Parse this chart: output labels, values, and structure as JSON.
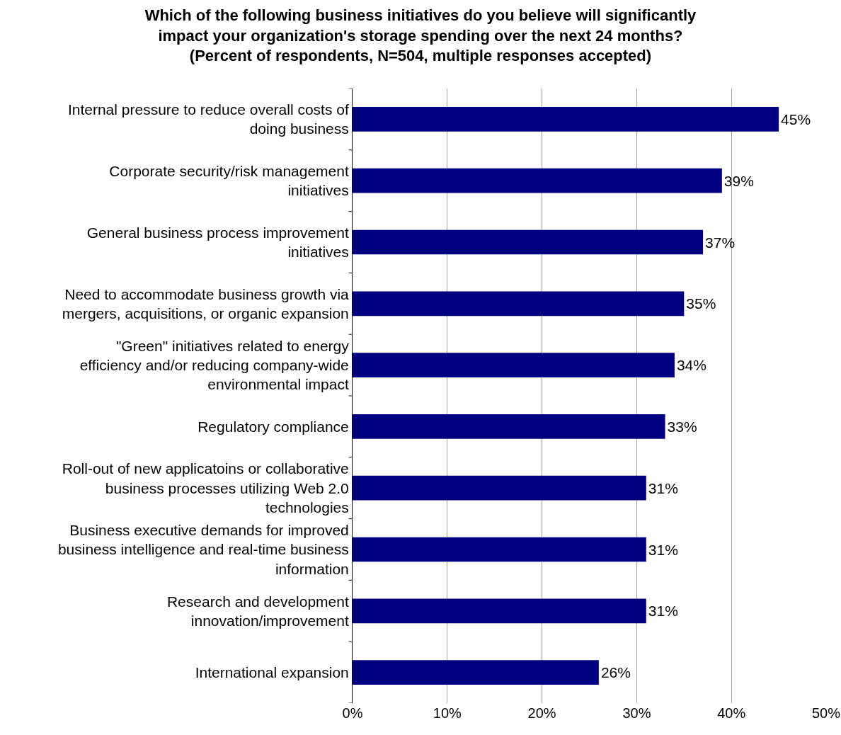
{
  "chart_data": {
    "type": "bar",
    "orientation": "horizontal",
    "title": "Which of the following business initiatives do you believe will significantly impact your organization's storage spending over the next 24 months? (Percent of respondents, N=504, multiple responses accepted)",
    "categories": [
      "Internal pressure to reduce overall costs of doing business",
      "Corporate security/risk management initiatives",
      "General business process improvement initiatives",
      "Need to accommodate business growth via mergers, acquisitions, or organic expansion",
      "\"Green\" initiatives related to energy efficiency and/or reducing company-wide environmental impact",
      "Regulatory compliance",
      "Roll-out of new applicatoins or collaborative business processes utilizing Web 2.0 technologies",
      "Business executive demands for improved business intelligence and real-time business information",
      "Research and development innovation/improvement",
      "International expansion"
    ],
    "values": [
      45,
      39,
      37,
      35,
      34,
      33,
      31,
      31,
      31,
      26
    ],
    "value_labels": [
      "45%",
      "39%",
      "37%",
      "35%",
      "34%",
      "33%",
      "31%",
      "31%",
      "31%",
      "26%"
    ],
    "color": "#000080",
    "xlim": [
      0,
      50
    ],
    "xticks": [
      {
        "value": 0,
        "label": "0%"
      },
      {
        "value": 10,
        "label": "10%"
      },
      {
        "value": 20,
        "label": "20%"
      },
      {
        "value": 30,
        "label": "30%"
      },
      {
        "value": 40,
        "label": "40%"
      },
      {
        "value": 50,
        "label": "50%"
      }
    ],
    "grid": "x"
  }
}
